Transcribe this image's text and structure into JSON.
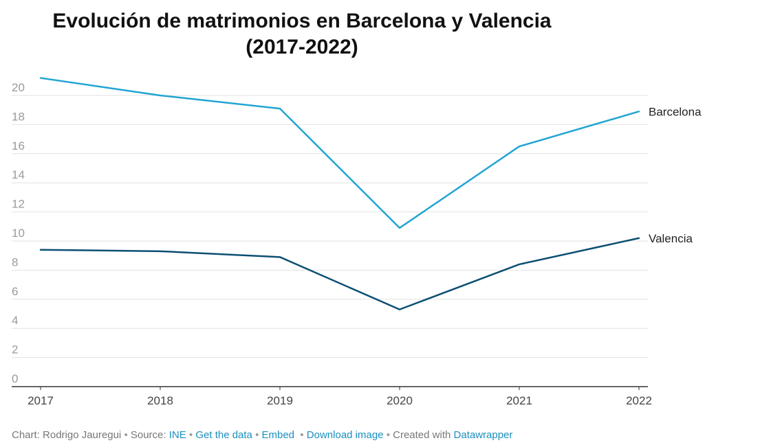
{
  "title_line1": "Evolución de matrimonios en Barcelona y Valencia",
  "title_line2": "(2017-2022)",
  "chart_data": {
    "type": "line",
    "title": "Evolución de matrimonios en Barcelona y Valencia (2017-2022)",
    "xlabel": "",
    "ylabel": "",
    "x": [
      "2017",
      "2018",
      "2019",
      "2020",
      "2021",
      "2022"
    ],
    "yticks": [
      "0",
      "2",
      "4",
      "6",
      "8",
      "10",
      "12",
      "14",
      "16",
      "18",
      "20"
    ],
    "ylim": [
      0,
      20
    ],
    "grid": true,
    "legend": "inline-right",
    "series": [
      {
        "name": "Barcelona",
        "color": "#21a4d3",
        "values": [
          21.2,
          20.0,
          19.1,
          10.9,
          16.5,
          18.9
        ]
      },
      {
        "name": "Valencia",
        "color": "#0b4f72",
        "values": [
          9.4,
          9.3,
          8.9,
          5.3,
          8.4,
          10.2
        ]
      }
    ]
  },
  "footer": {
    "chart_by": "Chart: Rodrigo Jauregui",
    "source_label": "Source:",
    "source_link": "INE",
    "get_data": "Get the data",
    "embed": "Embed",
    "download": "Download image",
    "created_with": "Created with",
    "datawrapper": "Datawrapper"
  }
}
